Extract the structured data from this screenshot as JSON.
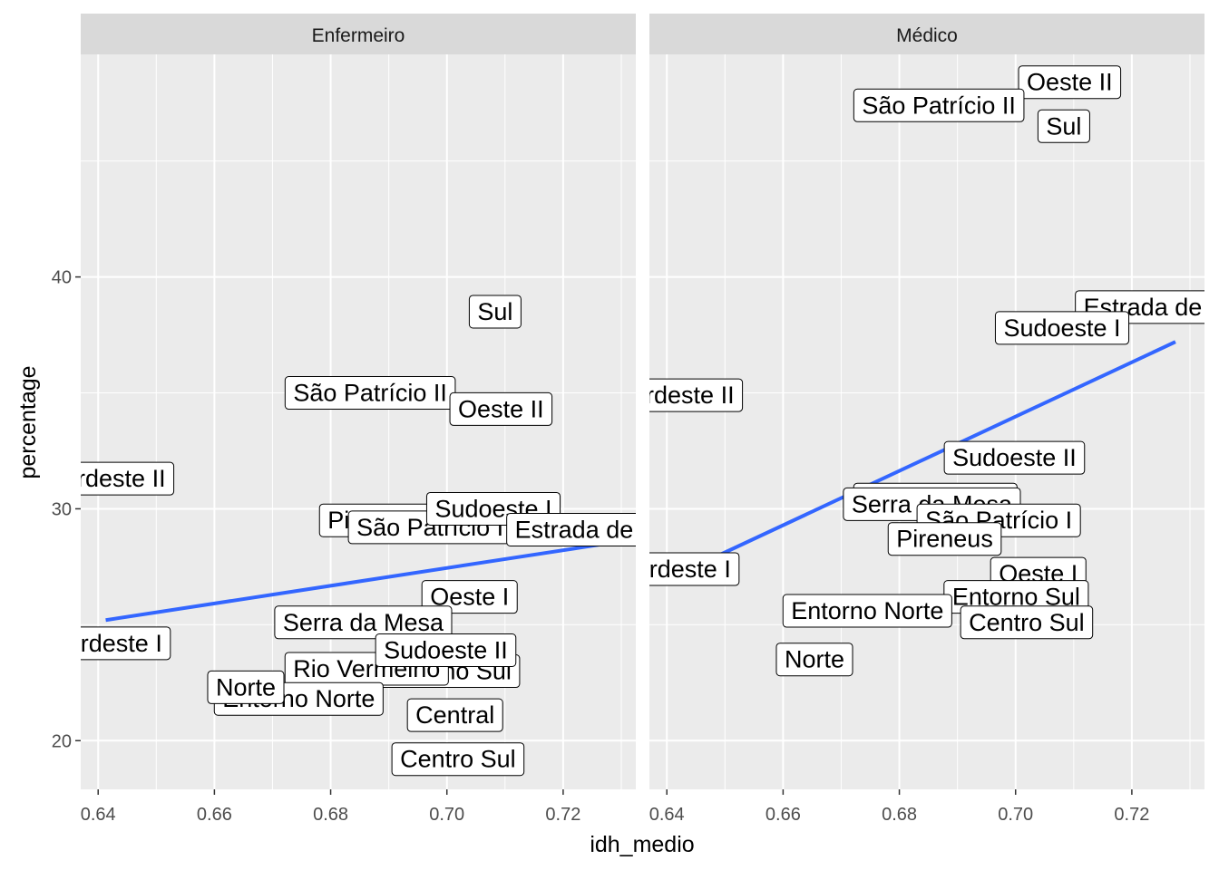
{
  "chart_data": {
    "type": "scatter",
    "xlabel": "idh_medio",
    "ylabel": "percentage",
    "xlim": [
      0.637,
      0.7325
    ],
    "ylim": [
      17.9,
      49.6
    ],
    "x_ticks": [
      {
        "value": 0.64,
        "label": "0.64"
      },
      {
        "value": 0.66,
        "label": "0.66"
      },
      {
        "value": 0.68,
        "label": "0.68"
      },
      {
        "value": 0.7,
        "label": "0.70"
      },
      {
        "value": 0.72,
        "label": "0.72"
      }
    ],
    "y_ticks": [
      {
        "value": 20,
        "label": "20"
      },
      {
        "value": 30,
        "label": "30"
      },
      {
        "value": 40,
        "label": "40"
      }
    ],
    "grid": true,
    "colors": {
      "panel_bg": "#ebebeb",
      "strip_bg": "#d9d9d9",
      "grid": "#ffffff",
      "fit_line": "#3366ff",
      "label_border": "#000000",
      "label_fill": "#ffffff"
    },
    "panels": [
      {
        "strip": "Enfermeiro",
        "fit": {
          "x": [
            0.6413,
            0.7275
          ],
          "y": [
            25.2,
            28.5
          ]
        },
        "points": [
          {
            "label": "Sul",
            "x": 0.7083,
            "y": 38.5
          },
          {
            "label": "São Patrício II",
            "x": 0.6868,
            "y": 35.0
          },
          {
            "label": "Oeste II",
            "x": 0.7093,
            "y": 34.3
          },
          {
            "label": "Nordeste II",
            "x": 0.6413,
            "y": 31.3
          },
          {
            "label": "Pireneus",
            "x": 0.6878,
            "y": 29.5
          },
          {
            "label": "São Patrício I",
            "x": 0.6971,
            "y": 29.2
          },
          {
            "label": "Sudoeste I",
            "x": 0.708,
            "y": 30.0
          },
          {
            "label": "Estrada de Ferro",
            "x": 0.7275,
            "y": 29.1
          },
          {
            "label": "Oeste I",
            "x": 0.7039,
            "y": 26.2
          },
          {
            "label": "Serra da Mesa",
            "x": 0.6856,
            "y": 25.1
          },
          {
            "label": "Nordeste I",
            "x": 0.6413,
            "y": 24.2
          },
          {
            "label": "Entorno Sul",
            "x": 0.7001,
            "y": 23.0
          },
          {
            "label": "Rio Vermelho",
            "x": 0.6862,
            "y": 23.1
          },
          {
            "label": "Sudoeste II",
            "x": 0.6998,
            "y": 23.9
          },
          {
            "label": "Entorno Norte",
            "x": 0.6745,
            "y": 21.8
          },
          {
            "label": "Norte",
            "x": 0.6654,
            "y": 22.3
          },
          {
            "label": "Central",
            "x": 0.7014,
            "y": 21.1
          },
          {
            "label": "Centro Sul",
            "x": 0.7019,
            "y": 19.2
          }
        ]
      },
      {
        "strip": "Médico",
        "fit": {
          "x": [
            0.6413,
            0.7275
          ],
          "y": [
            27.1,
            37.2
          ]
        },
        "points": [
          {
            "label": "Oeste II",
            "x": 0.7093,
            "y": 48.4
          },
          {
            "label": "São Patrício II",
            "x": 0.6868,
            "y": 47.4
          },
          {
            "label": "Sul",
            "x": 0.7083,
            "y": 46.5
          },
          {
            "label": "Estrada de Ferro",
            "x": 0.7275,
            "y": 38.7
          },
          {
            "label": "Sudoeste I",
            "x": 0.708,
            "y": 37.8
          },
          {
            "label": "Nordeste II",
            "x": 0.6413,
            "y": 34.9
          },
          {
            "label": "Sudoeste II",
            "x": 0.6998,
            "y": 32.2
          },
          {
            "label": "Rio Vermelho",
            "x": 0.6862,
            "y": 30.4
          },
          {
            "label": "Serra da Mesa",
            "x": 0.6856,
            "y": 30.2
          },
          {
            "label": "São Patrício I",
            "x": 0.6971,
            "y": 29.5
          },
          {
            "label": "Pireneus",
            "x": 0.6878,
            "y": 28.7
          },
          {
            "label": "Nordeste I",
            "x": 0.6413,
            "y": 27.4
          },
          {
            "label": "Oeste I",
            "x": 0.7039,
            "y": 27.2
          },
          {
            "label": "Entorno Sul",
            "x": 0.7001,
            "y": 26.2
          },
          {
            "label": "Entorno Norte",
            "x": 0.6745,
            "y": 25.6
          },
          {
            "label": "Centro Sul",
            "x": 0.7019,
            "y": 25.1
          },
          {
            "label": "Norte",
            "x": 0.6654,
            "y": 23.5
          }
        ]
      }
    ]
  }
}
